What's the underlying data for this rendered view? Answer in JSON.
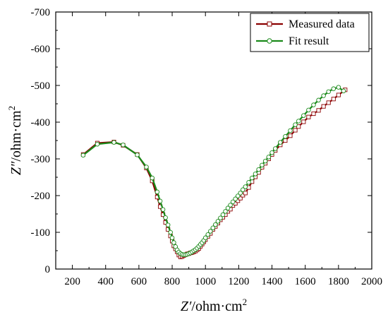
{
  "chart_data": {
    "type": "line",
    "title": "",
    "xlabel_italic": "Z′",
    "xlabel_rest": "/ohm·cm",
    "xlabel_sup": "2",
    "ylabel_italic": "Z″",
    "ylabel_rest": "/ohm·cm",
    "ylabel_sup": "2",
    "xlim": [
      100,
      2000
    ],
    "ylim": [
      0,
      -700
    ],
    "xticks": [
      200,
      400,
      600,
      800,
      1000,
      1200,
      1400,
      1600,
      1800,
      2000
    ],
    "xtick_labels": [
      "200",
      "400",
      "600",
      "800",
      "1000",
      "1200",
      "1400",
      "1600",
      "1800",
      "2000"
    ],
    "yticks": [
      0,
      -100,
      -200,
      -300,
      -400,
      -500,
      -600,
      -700
    ],
    "ytick_labels": [
      "0",
      "-100",
      "-200",
      "-300",
      "-400",
      "-500",
      "-600",
      "-700"
    ],
    "legend_position": "top-right",
    "series": [
      {
        "name": "Measured data",
        "color": "#8b0000",
        "marker": "square",
        "x": [
          265,
          350,
          450,
          505,
          590,
          645,
          680,
          710,
          728,
          745,
          760,
          775,
          790,
          800,
          810,
          820,
          830,
          840,
          850,
          860,
          870,
          880,
          890,
          900,
          910,
          920,
          930,
          940,
          950,
          960,
          970,
          980,
          990,
          1000,
          1015,
          1030,
          1045,
          1060,
          1075,
          1090,
          1105,
          1120,
          1135,
          1150,
          1165,
          1180,
          1195,
          1210,
          1225,
          1240,
          1260,
          1280,
          1300,
          1320,
          1340,
          1360,
          1380,
          1400,
          1420,
          1450,
          1480,
          1510,
          1540,
          1560,
          1590,
          1620,
          1650,
          1680,
          1710,
          1740,
          1770,
          1800,
          1840
        ],
        "y": [
          -312,
          -343,
          -346,
          -337,
          -312,
          -275,
          -240,
          -196,
          -170,
          -148,
          -127,
          -108,
          -90,
          -76,
          -63,
          -55,
          -47,
          -38,
          -33,
          -34,
          -37,
          -39,
          -41,
          -42,
          -44,
          -45,
          -47,
          -49,
          -52,
          -56,
          -62,
          -68,
          -74,
          -80,
          -89,
          -97,
          -108,
          -116,
          -125,
          -134,
          -141,
          -148,
          -157,
          -163,
          -173,
          -179,
          -186,
          -193,
          -201,
          -207,
          -222,
          -238,
          -251,
          -263,
          -277,
          -288,
          -300,
          -312,
          -323,
          -338,
          -350,
          -363,
          -378,
          -388,
          -401,
          -414,
          -423,
          -432,
          -443,
          -453,
          -463,
          -474,
          -488
        ]
      },
      {
        "name": "Fit result",
        "color": "#1a8a1a",
        "marker": "circle",
        "x": [
          265,
          350,
          450,
          505,
          590,
          645,
          680,
          710,
          728,
          745,
          760,
          775,
          790,
          800,
          810,
          820,
          830,
          840,
          850,
          860,
          870,
          880,
          890,
          900,
          910,
          920,
          930,
          940,
          950,
          960,
          970,
          980,
          990,
          1000,
          1015,
          1030,
          1045,
          1060,
          1075,
          1090,
          1105,
          1120,
          1135,
          1150,
          1165,
          1180,
          1195,
          1210,
          1225,
          1240,
          1260,
          1280,
          1300,
          1320,
          1340,
          1360,
          1380,
          1400,
          1420,
          1450,
          1480,
          1510,
          1540,
          1560,
          1590,
          1620,
          1650,
          1680,
          1710,
          1740,
          1770,
          1800,
          1830
        ],
        "y": [
          -310,
          -340,
          -345,
          -338,
          -311,
          -278,
          -248,
          -210,
          -185,
          -162,
          -140,
          -120,
          -100,
          -85,
          -72,
          -61,
          -52,
          -46,
          -42,
          -40,
          -39,
          -39,
          -40,
          -42,
          -44,
          -47,
          -50,
          -53,
          -57,
          -62,
          -67,
          -72,
          -78,
          -85,
          -94,
          -103,
          -112,
          -121,
          -130,
          -139,
          -148,
          -157,
          -166,
          -174,
          -183,
          -191,
          -199,
          -207,
          -216,
          -224,
          -236,
          -248,
          -259,
          -271,
          -283,
          -294,
          -305,
          -317,
          -328,
          -345,
          -361,
          -377,
          -393,
          -403,
          -418,
          -433,
          -447,
          -460,
          -472,
          -483,
          -491,
          -495,
          -485
        ]
      }
    ]
  }
}
